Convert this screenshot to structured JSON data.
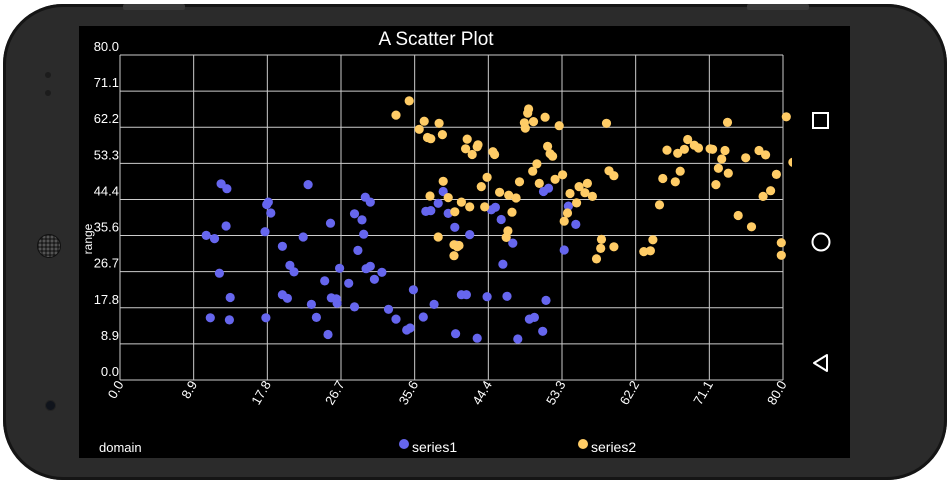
{
  "chart_data": {
    "type": "scatter",
    "title": "A Scatter Plot",
    "xlabel": "domain",
    "ylabel": "range",
    "xlim": [
      0,
      80
    ],
    "ylim": [
      0,
      80
    ],
    "x_ticks": [
      "0.0",
      "8.9",
      "17.8",
      "26.7",
      "35.6",
      "44.4",
      "53.3",
      "62.2",
      "71.1",
      "80.0"
    ],
    "y_ticks": [
      "0.0",
      "8.9",
      "17.8",
      "26.7",
      "35.6",
      "44.4",
      "53.3",
      "62.2",
      "71.1",
      "80.0"
    ],
    "grid": true,
    "legend_position": "bottom",
    "series": [
      {
        "name": "series1",
        "color": "#6666ee",
        "points": [
          [
            12.2,
            48.3
          ],
          [
            12.9,
            47.1
          ],
          [
            11.4,
            34.8
          ],
          [
            12.0,
            26.3
          ],
          [
            12.8,
            37.9
          ],
          [
            10.9,
            15.3
          ],
          [
            13.3,
            20.3
          ],
          [
            13.2,
            14.8
          ],
          [
            10.4,
            35.6
          ],
          [
            17.7,
            43.2
          ],
          [
            17.9,
            43.8
          ],
          [
            17.5,
            36.5
          ],
          [
            18.2,
            41.1
          ],
          [
            17.6,
            15.3
          ],
          [
            19.6,
            21.0
          ],
          [
            19.6,
            32.9
          ],
          [
            20.5,
            28.2
          ],
          [
            21.0,
            26.6
          ],
          [
            20.2,
            20.1
          ],
          [
            22.1,
            35.2
          ],
          [
            22.7,
            48.1
          ],
          [
            23.1,
            18.6
          ],
          [
            23.7,
            15.4
          ],
          [
            24.7,
            24.4
          ],
          [
            25.1,
            11.2
          ],
          [
            25.4,
            38.6
          ],
          [
            25.5,
            20.2
          ],
          [
            26.1,
            20.0
          ],
          [
            26.2,
            18.9
          ],
          [
            26.5,
            27.5
          ],
          [
            27.6,
            23.8
          ],
          [
            28.3,
            18.0
          ],
          [
            28.3,
            40.9
          ],
          [
            28.7,
            31.9
          ],
          [
            29.2,
            39.4
          ],
          [
            29.4,
            35.9
          ],
          [
            29.6,
            45.0
          ],
          [
            29.7,
            27.4
          ],
          [
            30.2,
            28.0
          ],
          [
            30.2,
            43.8
          ],
          [
            30.7,
            24.8
          ],
          [
            31.6,
            26.5
          ],
          [
            32.4,
            17.4
          ],
          [
            33.3,
            15.0
          ],
          [
            34.6,
            12.3
          ],
          [
            35.0,
            12.8
          ],
          [
            35.4,
            22.2
          ],
          [
            36.6,
            15.5
          ],
          [
            36.9,
            41.5
          ],
          [
            37.5,
            41.7
          ],
          [
            37.9,
            18.6
          ],
          [
            38.4,
            43.5
          ],
          [
            39.0,
            46.4
          ],
          [
            39.6,
            41.0
          ],
          [
            40.4,
            37.6
          ],
          [
            40.5,
            11.4
          ],
          [
            40.6,
            33.2
          ],
          [
            41.2,
            21.0
          ],
          [
            41.8,
            21.0
          ],
          [
            42.2,
            35.8
          ],
          [
            43.1,
            10.3
          ],
          [
            44.3,
            20.5
          ],
          [
            44.8,
            41.9
          ],
          [
            45.3,
            42.5
          ],
          [
            46.0,
            39.5
          ],
          [
            46.2,
            28.5
          ],
          [
            46.7,
            20.6
          ],
          [
            47.4,
            33.7
          ],
          [
            48.0,
            10.1
          ],
          [
            49.4,
            15.0
          ],
          [
            50.0,
            15.4
          ],
          [
            51.0,
            12.0
          ],
          [
            51.1,
            46.4
          ],
          [
            51.7,
            47.2
          ],
          [
            51.4,
            19.6
          ],
          [
            53.6,
            32.0
          ],
          [
            54.1,
            42.8
          ],
          [
            55.0,
            38.3
          ]
        ]
      },
      {
        "name": "series2",
        "color": "#ffcc66",
        "points": [
          [
            33.3,
            65.2
          ],
          [
            34.9,
            68.7
          ],
          [
            36.1,
            61.7
          ],
          [
            36.7,
            63.7
          ],
          [
            37.1,
            59.7
          ],
          [
            37.5,
            59.4
          ],
          [
            37.4,
            45.3
          ],
          [
            38.5,
            63.2
          ],
          [
            38.4,
            35.2
          ],
          [
            38.9,
            60.4
          ],
          [
            39.0,
            48.9
          ],
          [
            39.6,
            44.9
          ],
          [
            40.3,
            30.6
          ],
          [
            40.3,
            33.3
          ],
          [
            40.4,
            41.4
          ],
          [
            40.7,
            32.8
          ],
          [
            40.9,
            33.1
          ],
          [
            41.2,
            43.8
          ],
          [
            41.7,
            56.9
          ],
          [
            41.9,
            59.3
          ],
          [
            42.5,
            55.5
          ],
          [
            42.2,
            42.6
          ],
          [
            43.1,
            57.4
          ],
          [
            43.2,
            57.9
          ],
          [
            43.6,
            47.6
          ],
          [
            44.0,
            42.6
          ],
          [
            44.3,
            49.9
          ],
          [
            45.0,
            56.2
          ],
          [
            45.2,
            55.5
          ],
          [
            45.8,
            46.2
          ],
          [
            46.6,
            35.1
          ],
          [
            46.8,
            36.7
          ],
          [
            46.9,
            45.5
          ],
          [
            47.3,
            41.3
          ],
          [
            47.8,
            44.8
          ],
          [
            48.2,
            48.8
          ],
          [
            48.8,
            63.3
          ],
          [
            48.9,
            62.0
          ],
          [
            49.2,
            65.7
          ],
          [
            49.3,
            66.7
          ],
          [
            49.8,
            51.4
          ],
          [
            49.9,
            63.6
          ],
          [
            50.3,
            53.2
          ],
          [
            50.6,
            48.4
          ],
          [
            51.3,
            64.7
          ],
          [
            51.6,
            57.5
          ],
          [
            51.9,
            55.7
          ],
          [
            52.2,
            55.1
          ],
          [
            52.5,
            49.4
          ],
          [
            53.0,
            62.6
          ],
          [
            53.4,
            50.5
          ],
          [
            53.6,
            39.1
          ],
          [
            54.0,
            41.1
          ],
          [
            54.3,
            45.9
          ],
          [
            55.1,
            43.6
          ],
          [
            55.4,
            47.6
          ],
          [
            56.1,
            46.1
          ],
          [
            56.4,
            48.4
          ],
          [
            57.0,
            45.2
          ],
          [
            57.5,
            29.8
          ],
          [
            58.0,
            32.4
          ],
          [
            58.1,
            34.6
          ],
          [
            58.7,
            63.2
          ],
          [
            59.0,
            51.5
          ],
          [
            59.6,
            32.8
          ],
          [
            59.6,
            50.3
          ],
          [
            63.2,
            31.6
          ],
          [
            64.0,
            31.8
          ],
          [
            64.3,
            34.5
          ],
          [
            65.1,
            43.1
          ],
          [
            65.5,
            49.6
          ],
          [
            66.0,
            56.6
          ],
          [
            67.0,
            48.8
          ],
          [
            67.3,
            55.8
          ],
          [
            67.6,
            51.4
          ],
          [
            68.1,
            56.8
          ],
          [
            68.5,
            59.2
          ],
          [
            69.3,
            57.8
          ],
          [
            69.8,
            57.1
          ],
          [
            71.2,
            56.9
          ],
          [
            71.5,
            56.8
          ],
          [
            71.9,
            48.1
          ],
          [
            72.2,
            52.1
          ],
          [
            72.6,
            54.4
          ],
          [
            73.0,
            56.5
          ],
          [
            73.3,
            63.4
          ],
          [
            73.4,
            50.9
          ],
          [
            74.6,
            40.5
          ],
          [
            75.5,
            54.7
          ],
          [
            76.2,
            37.7
          ],
          [
            77.1,
            56.5
          ],
          [
            77.6,
            45.2
          ],
          [
            77.9,
            55.4
          ],
          [
            78.5,
            46.6
          ],
          [
            79.2,
            50.6
          ],
          [
            79.8,
            33.8
          ],
          [
            79.8,
            30.7
          ],
          [
            80.4,
            64.8
          ],
          [
            81.2,
            53.6
          ]
        ]
      }
    ]
  }
}
